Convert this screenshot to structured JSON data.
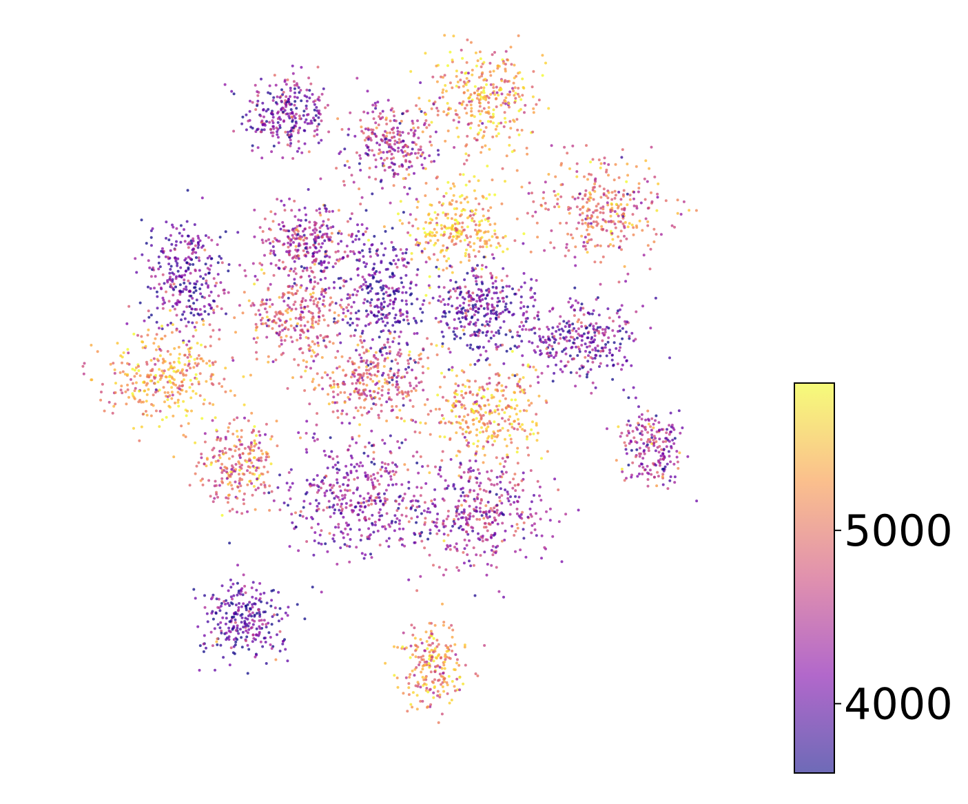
{
  "chart_data": {
    "type": "scatter",
    "title": "",
    "xlabel": "",
    "ylabel": "",
    "axes_visible": false,
    "grid": false,
    "colormap": "plasma",
    "colorbar": {
      "placement": "right",
      "range": [
        3600,
        5850
      ],
      "ticks": [
        {
          "value": 4000,
          "label": "4000"
        },
        {
          "value": 5000,
          "label": "5000"
        }
      ]
    },
    "point_color_range_hex": [
      "#0d0887",
      "#f0f921"
    ],
    "clusters": [
      {
        "x": 0.3,
        "y": 0.88,
        "spread": [
          0.03,
          0.028
        ],
        "color_mean": 0.25,
        "count": 260
      },
      {
        "x": 0.44,
        "y": 0.84,
        "spread": [
          0.03,
          0.03
        ],
        "color_mean": 0.4,
        "count": 260
      },
      {
        "x": 0.57,
        "y": 0.9,
        "spread": [
          0.04,
          0.04
        ],
        "color_mean": 0.75,
        "count": 320
      },
      {
        "x": 0.73,
        "y": 0.75,
        "spread": [
          0.045,
          0.034
        ],
        "color_mean": 0.6,
        "count": 320
      },
      {
        "x": 0.16,
        "y": 0.66,
        "spread": [
          0.03,
          0.04
        ],
        "color_mean": 0.2,
        "count": 300
      },
      {
        "x": 0.33,
        "y": 0.7,
        "spread": [
          0.035,
          0.03
        ],
        "color_mean": 0.35,
        "count": 300
      },
      {
        "x": 0.53,
        "y": 0.72,
        "spread": [
          0.035,
          0.03
        ],
        "color_mean": 0.8,
        "count": 280
      },
      {
        "x": 0.43,
        "y": 0.63,
        "spread": [
          0.032,
          0.045
        ],
        "color_mean": 0.15,
        "count": 320
      },
      {
        "x": 0.57,
        "y": 0.61,
        "spread": [
          0.035,
          0.03
        ],
        "color_mean": 0.15,
        "count": 320
      },
      {
        "x": 0.7,
        "y": 0.57,
        "spread": [
          0.04,
          0.03
        ],
        "color_mean": 0.25,
        "count": 300
      },
      {
        "x": 0.31,
        "y": 0.6,
        "spread": [
          0.035,
          0.03
        ],
        "color_mean": 0.55,
        "count": 280
      },
      {
        "x": 0.13,
        "y": 0.52,
        "spread": [
          0.045,
          0.03
        ],
        "color_mean": 0.75,
        "count": 320
      },
      {
        "x": 0.41,
        "y": 0.51,
        "spread": [
          0.04,
          0.03
        ],
        "color_mean": 0.55,
        "count": 300
      },
      {
        "x": 0.57,
        "y": 0.47,
        "spread": [
          0.04,
          0.035
        ],
        "color_mean": 0.75,
        "count": 320
      },
      {
        "x": 0.8,
        "y": 0.42,
        "spread": [
          0.022,
          0.026
        ],
        "color_mean": 0.35,
        "count": 200
      },
      {
        "x": 0.23,
        "y": 0.4,
        "spread": [
          0.028,
          0.03
        ],
        "color_mean": 0.6,
        "count": 240
      },
      {
        "x": 0.4,
        "y": 0.35,
        "spread": [
          0.055,
          0.04
        ],
        "color_mean": 0.3,
        "count": 420
      },
      {
        "x": 0.56,
        "y": 0.33,
        "spread": [
          0.045,
          0.04
        ],
        "color_mean": 0.35,
        "count": 380
      },
      {
        "x": 0.24,
        "y": 0.18,
        "spread": [
          0.03,
          0.025
        ],
        "color_mean": 0.15,
        "count": 260
      },
      {
        "x": 0.5,
        "y": 0.12,
        "spread": [
          0.022,
          0.03
        ],
        "color_mean": 0.7,
        "count": 220
      }
    ]
  }
}
